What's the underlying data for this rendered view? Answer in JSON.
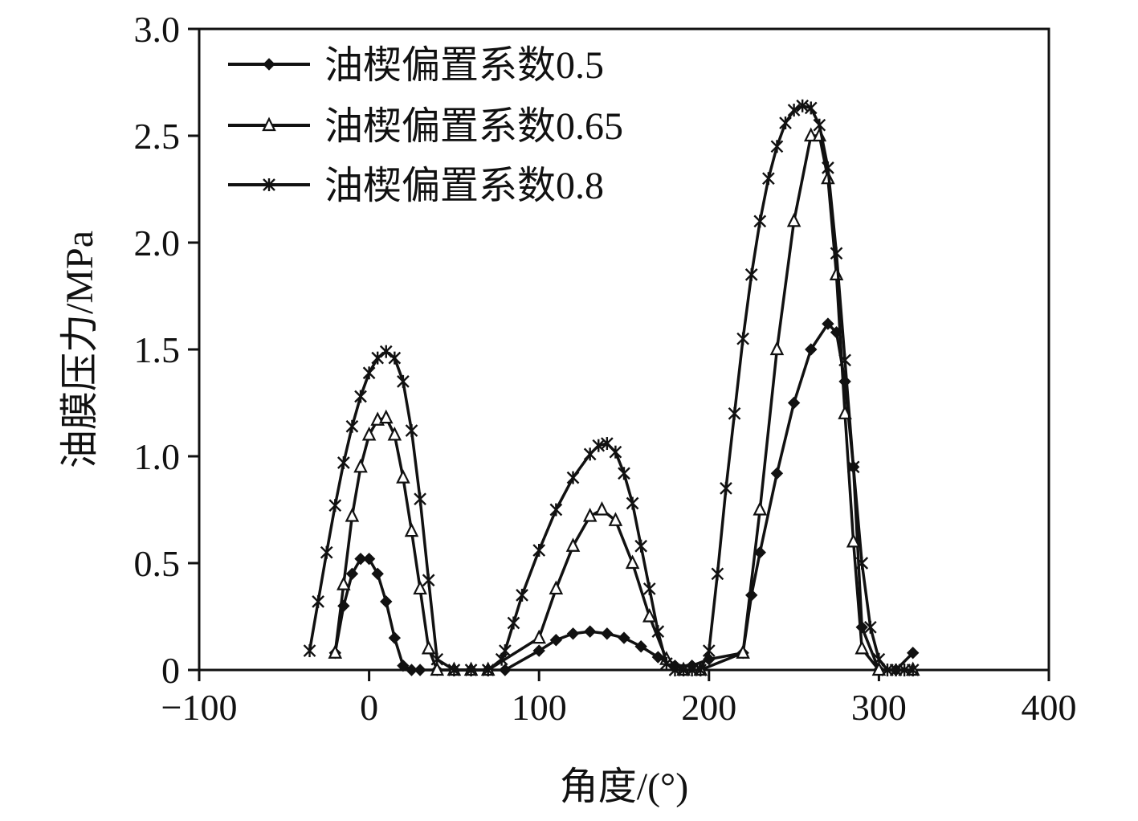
{
  "chart_data": {
    "type": "line",
    "xlabel": "角度/(°)",
    "ylabel": "油膜压力/MPa",
    "xlim": [
      -100,
      400
    ],
    "ylim": [
      0,
      3.0
    ],
    "x_ticks": [
      -100,
      0,
      100,
      200,
      300,
      400
    ],
    "x_tick_labels": [
      "−100",
      "0",
      "100",
      "200",
      "300",
      "400"
    ],
    "y_ticks": [
      0,
      0.5,
      1.0,
      1.5,
      2.0,
      2.5,
      3.0
    ],
    "y_tick_labels": [
      "0",
      "0.5",
      "1.0",
      "1.5",
      "2.0",
      "2.5",
      "3.0"
    ],
    "grid": false,
    "legend_position": "top-left",
    "series": [
      {
        "name": "油楔偏置系数0.5",
        "marker": "diamond",
        "color": "#111111",
        "x": [
          -20,
          -15,
          -10,
          -5,
          0,
          5,
          10,
          15,
          20,
          25,
          30,
          40,
          50,
          60,
          70,
          80,
          100,
          110,
          120,
          130,
          140,
          150,
          160,
          170,
          180,
          190,
          200,
          220,
          225,
          230,
          240,
          250,
          260,
          270,
          275,
          280,
          285,
          290,
          300,
          310,
          320
        ],
        "y": [
          0.08,
          0.3,
          0.45,
          0.52,
          0.52,
          0.45,
          0.32,
          0.15,
          0.02,
          0,
          0,
          0,
          0,
          0,
          0,
          0,
          0.09,
          0.14,
          0.17,
          0.18,
          0.17,
          0.15,
          0.11,
          0.06,
          0.02,
          0.02,
          0.05,
          0.08,
          0.35,
          0.55,
          0.92,
          1.25,
          1.5,
          1.62,
          1.58,
          1.35,
          0.95,
          0.2,
          0,
          0,
          0.08
        ]
      },
      {
        "name": "油楔偏置系数0.65",
        "marker": "triangle",
        "color": "#111111",
        "x": [
          -20,
          -15,
          -10,
          -5,
          0,
          5,
          10,
          15,
          20,
          25,
          30,
          35,
          40,
          50,
          60,
          70,
          100,
          110,
          120,
          130,
          137,
          145,
          155,
          165,
          175,
          185,
          195,
          220,
          230,
          240,
          250,
          260,
          265,
          270,
          275,
          280,
          285,
          290,
          300,
          320
        ],
        "y": [
          0.08,
          0.4,
          0.72,
          0.95,
          1.1,
          1.17,
          1.18,
          1.1,
          0.9,
          0.65,
          0.38,
          0.1,
          0,
          0,
          0,
          0,
          0.15,
          0.38,
          0.58,
          0.72,
          0.75,
          0.7,
          0.5,
          0.25,
          0.05,
          0,
          0,
          0.08,
          0.75,
          1.5,
          2.1,
          2.5,
          2.5,
          2.3,
          1.85,
          1.2,
          0.6,
          0.1,
          0,
          0
        ]
      },
      {
        "name": "油楔偏置系数0.8",
        "marker": "star",
        "color": "#111111",
        "x": [
          -35,
          -30,
          -25,
          -20,
          -15,
          -10,
          -5,
          0,
          5,
          10,
          15,
          20,
          25,
          30,
          35,
          40,
          50,
          60,
          70,
          78,
          80,
          85,
          90,
          100,
          110,
          120,
          130,
          135,
          140,
          145,
          150,
          155,
          160,
          165,
          170,
          175,
          180,
          185,
          190,
          195,
          200,
          205,
          210,
          215,
          220,
          225,
          230,
          235,
          240,
          245,
          250,
          255,
          260,
          265,
          270,
          275,
          280,
          285,
          290,
          295,
          300,
          305,
          310,
          315,
          320
        ],
        "y": [
          0.09,
          0.32,
          0.55,
          0.77,
          0.97,
          1.14,
          1.28,
          1.39,
          1.46,
          1.49,
          1.46,
          1.35,
          1.12,
          0.8,
          0.42,
          0.05,
          0,
          0,
          0,
          0.05,
          0.09,
          0.22,
          0.35,
          0.56,
          0.75,
          0.9,
          1.01,
          1.05,
          1.06,
          1.02,
          0.92,
          0.78,
          0.58,
          0.38,
          0.18,
          0.03,
          0,
          0,
          0,
          0,
          0.09,
          0.45,
          0.85,
          1.2,
          1.55,
          1.85,
          2.1,
          2.3,
          2.45,
          2.56,
          2.62,
          2.64,
          2.63,
          2.55,
          2.35,
          1.95,
          1.45,
          0.95,
          0.5,
          0.2,
          0.05,
          0,
          0,
          0,
          0
        ]
      }
    ]
  }
}
